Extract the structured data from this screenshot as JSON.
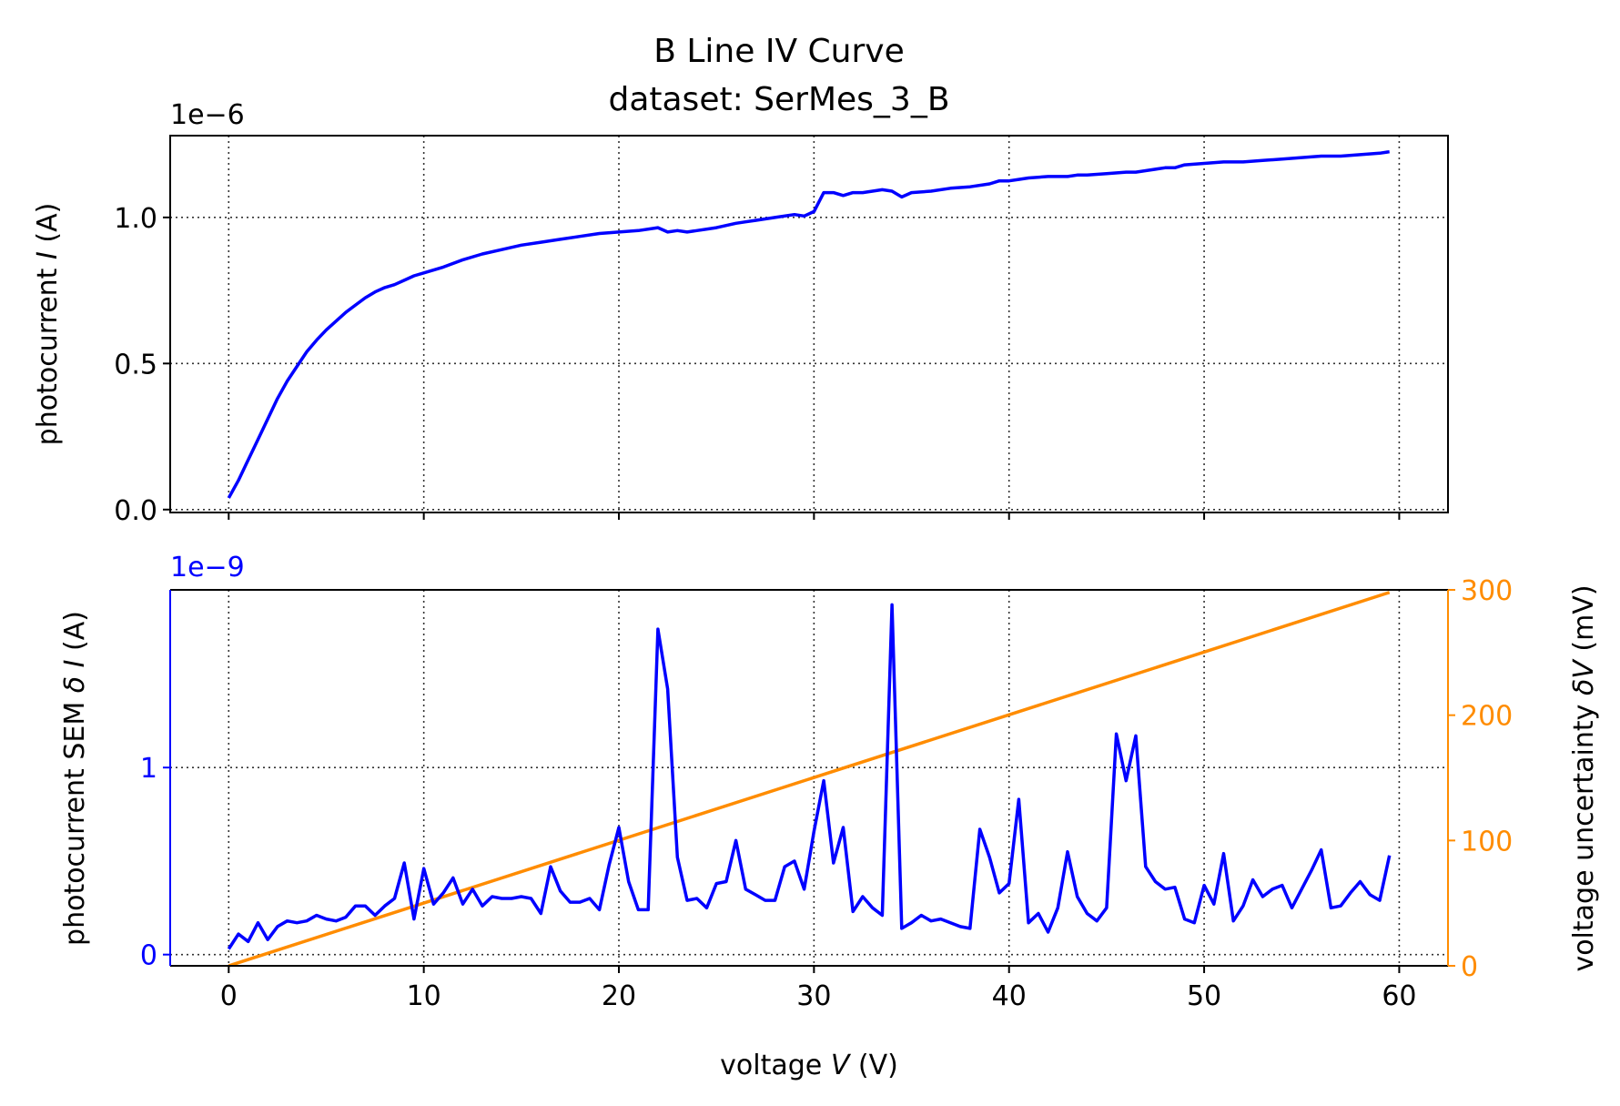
{
  "figure": {
    "title_line1": "B Line IV Curve",
    "title_line2": "dataset: SerMes_3_B"
  },
  "colors": {
    "current": "#0000ff",
    "sem": "#0000ff",
    "voltage_uncertainty": "#ff8c00",
    "axes": "#000000",
    "grid": "#333333"
  },
  "chart_data": [
    {
      "type": "line",
      "ylabel": "photocurrent I (A)",
      "offset_text": "1e−6",
      "xlim": [
        -3,
        62.5
      ],
      "ylim": [
        -0.01,
        1.28
      ],
      "xticks": [
        0,
        10,
        20,
        30,
        40,
        50,
        60
      ],
      "yticks": [
        0.0,
        0.5,
        1.0
      ],
      "ytick_labels": [
        "0.0",
        "0.5",
        "1.0"
      ],
      "grid": true,
      "series": [
        {
          "x": [
            0.0,
            0.5,
            1.0,
            1.5,
            2.0,
            2.5,
            3.0,
            3.5,
            4.0,
            4.5,
            5.0,
            5.5,
            6.0,
            6.5,
            7.0,
            7.5,
            8.0,
            8.5,
            9.0,
            9.5,
            10.0,
            11.0,
            12.0,
            13.0,
            14.0,
            15.0,
            16.0,
            17.0,
            18.0,
            19.0,
            20.0,
            21.0,
            22.0,
            22.5,
            23.0,
            23.5,
            24.0,
            25.0,
            26.0,
            26.5,
            27.0,
            28.0,
            29.0,
            29.5,
            30.0,
            30.5,
            31.0,
            31.5,
            32.0,
            32.5,
            33.0,
            33.5,
            34.0,
            34.5,
            35.0,
            36.0,
            37.0,
            38.0,
            39.0,
            39.5,
            40.0,
            40.5,
            41.0,
            42.0,
            43.0,
            43.5,
            44.0,
            45.0,
            46.0,
            46.5,
            47.0,
            48.0,
            48.5,
            49.0,
            50.0,
            51.0,
            52.0,
            53.0,
            54.0,
            55.0,
            56.0,
            57.0,
            58.0,
            59.0,
            59.5
          ],
          "y": [
            0.04,
            0.1,
            0.17,
            0.24,
            0.31,
            0.38,
            0.44,
            0.49,
            0.54,
            0.58,
            0.615,
            0.645,
            0.675,
            0.7,
            0.725,
            0.745,
            0.76,
            0.77,
            0.785,
            0.8,
            0.81,
            0.83,
            0.855,
            0.875,
            0.89,
            0.905,
            0.915,
            0.925,
            0.935,
            0.945,
            0.95,
            0.955,
            0.965,
            0.95,
            0.955,
            0.95,
            0.955,
            0.965,
            0.98,
            0.985,
            0.99,
            1.0,
            1.01,
            1.005,
            1.02,
            1.085,
            1.085,
            1.075,
            1.085,
            1.085,
            1.09,
            1.095,
            1.09,
            1.07,
            1.085,
            1.09,
            1.1,
            1.105,
            1.115,
            1.125,
            1.125,
            1.13,
            1.135,
            1.14,
            1.14,
            1.145,
            1.145,
            1.15,
            1.155,
            1.155,
            1.16,
            1.17,
            1.17,
            1.18,
            1.185,
            1.19,
            1.19,
            1.195,
            1.2,
            1.205,
            1.21,
            1.21,
            1.215,
            1.22,
            1.225
          ]
        }
      ]
    },
    {
      "type": "line",
      "xlabel": "voltage V (V)",
      "ylabel": "photocurrent SEM δ I (A)",
      "offset_text": "1e−9",
      "y2label": "voltage uncertainty δV (mV)",
      "xlim": [
        -3,
        62.5
      ],
      "ylim": [
        -0.06,
        1.95
      ],
      "y2lim": [
        0,
        300
      ],
      "xticks": [
        0,
        10,
        20,
        30,
        40,
        50,
        60
      ],
      "yticks": [
        0,
        1
      ],
      "y2ticks": [
        0,
        100,
        200,
        300
      ],
      "grid": true,
      "series": [
        {
          "axis": "left",
          "x": [
            0.0,
            0.5,
            1.0,
            1.5,
            2.0,
            2.5,
            3.0,
            3.5,
            4.0,
            4.5,
            5.0,
            5.5,
            6.0,
            6.5,
            7.0,
            7.5,
            8.0,
            8.5,
            9.0,
            9.5,
            10.0,
            10.5,
            11.0,
            11.5,
            12.0,
            12.5,
            13.0,
            13.5,
            14.0,
            14.5,
            15.0,
            15.5,
            16.0,
            16.5,
            17.0,
            17.5,
            18.0,
            18.5,
            19.0,
            19.5,
            20.0,
            20.5,
            21.0,
            21.5,
            22.0,
            22.5,
            23.0,
            23.5,
            24.0,
            24.5,
            25.0,
            25.5,
            26.0,
            26.5,
            27.0,
            27.5,
            28.0,
            28.5,
            29.0,
            29.5,
            30.0,
            30.5,
            31.0,
            31.5,
            32.0,
            32.5,
            33.0,
            33.5,
            34.0,
            34.5,
            35.0,
            35.5,
            36.0,
            36.5,
            37.0,
            37.5,
            38.0,
            38.5,
            39.0,
            39.5,
            40.0,
            40.5,
            41.0,
            41.5,
            42.0,
            42.5,
            43.0,
            43.5,
            44.0,
            44.5,
            45.0,
            45.5,
            46.0,
            46.5,
            47.0,
            47.5,
            48.0,
            48.5,
            49.0,
            49.5,
            50.0,
            50.5,
            51.0,
            51.5,
            52.0,
            52.5,
            53.0,
            53.5,
            54.0,
            54.5,
            55.0,
            55.5,
            56.0,
            56.5,
            57.0,
            57.5,
            58.0,
            58.5,
            59.0,
            59.5
          ],
          "y": [
            0.03,
            0.11,
            0.07,
            0.17,
            0.08,
            0.15,
            0.18,
            0.17,
            0.18,
            0.21,
            0.19,
            0.18,
            0.2,
            0.26,
            0.26,
            0.21,
            0.26,
            0.3,
            0.49,
            0.19,
            0.46,
            0.27,
            0.33,
            0.41,
            0.27,
            0.35,
            0.26,
            0.31,
            0.3,
            0.3,
            0.31,
            0.3,
            0.22,
            0.47,
            0.34,
            0.28,
            0.28,
            0.3,
            0.24,
            0.48,
            0.68,
            0.39,
            0.24,
            0.24,
            1.74,
            1.42,
            0.52,
            0.29,
            0.3,
            0.25,
            0.38,
            0.39,
            0.61,
            0.35,
            0.32,
            0.29,
            0.29,
            0.47,
            0.5,
            0.35,
            0.66,
            0.93,
            0.49,
            0.68,
            0.23,
            0.31,
            0.25,
            0.21,
            1.87,
            0.14,
            0.17,
            0.21,
            0.18,
            0.19,
            0.17,
            0.15,
            0.14,
            0.67,
            0.52,
            0.33,
            0.38,
            0.83,
            0.17,
            0.22,
            0.12,
            0.25,
            0.55,
            0.31,
            0.22,
            0.18,
            0.25,
            1.18,
            0.93,
            1.17,
            0.47,
            0.39,
            0.35,
            0.36,
            0.19,
            0.17,
            0.37,
            0.27,
            0.54,
            0.18,
            0.26,
            0.4,
            0.31,
            0.35,
            0.37,
            0.25,
            0.35,
            0.45,
            0.56,
            0.25,
            0.26,
            0.33,
            0.39,
            0.32,
            0.29,
            0.53
          ]
        },
        {
          "axis": "right",
          "x": [
            0.0,
            59.5
          ],
          "y": [
            0.0,
            298.0
          ]
        }
      ]
    }
  ]
}
